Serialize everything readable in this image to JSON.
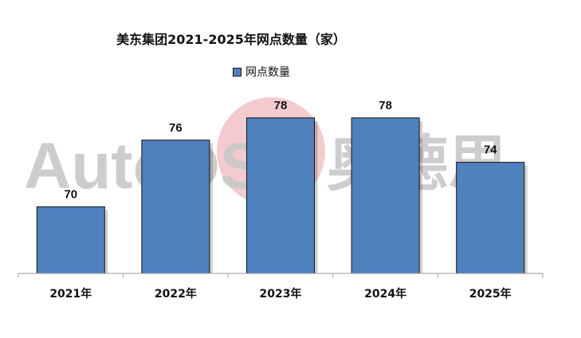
{
  "chart_data": {
    "type": "bar",
    "title": "美东集团2021-2025年网点数量（家）",
    "categories": [
      "2021年",
      "2022年",
      "2023年",
      "2024年",
      "2025年"
    ],
    "series": [
      {
        "name": "网点数量",
        "values": [
          70,
          76,
          78,
          78,
          74
        ],
        "color": "#4F81BD"
      }
    ],
    "ylim": [
      64,
      80
    ],
    "grid": false,
    "legend": "top-center",
    "data_labels": true
  },
  "watermark": {
    "latin": "AutoDS",
    "cjk": "奥德思"
  }
}
